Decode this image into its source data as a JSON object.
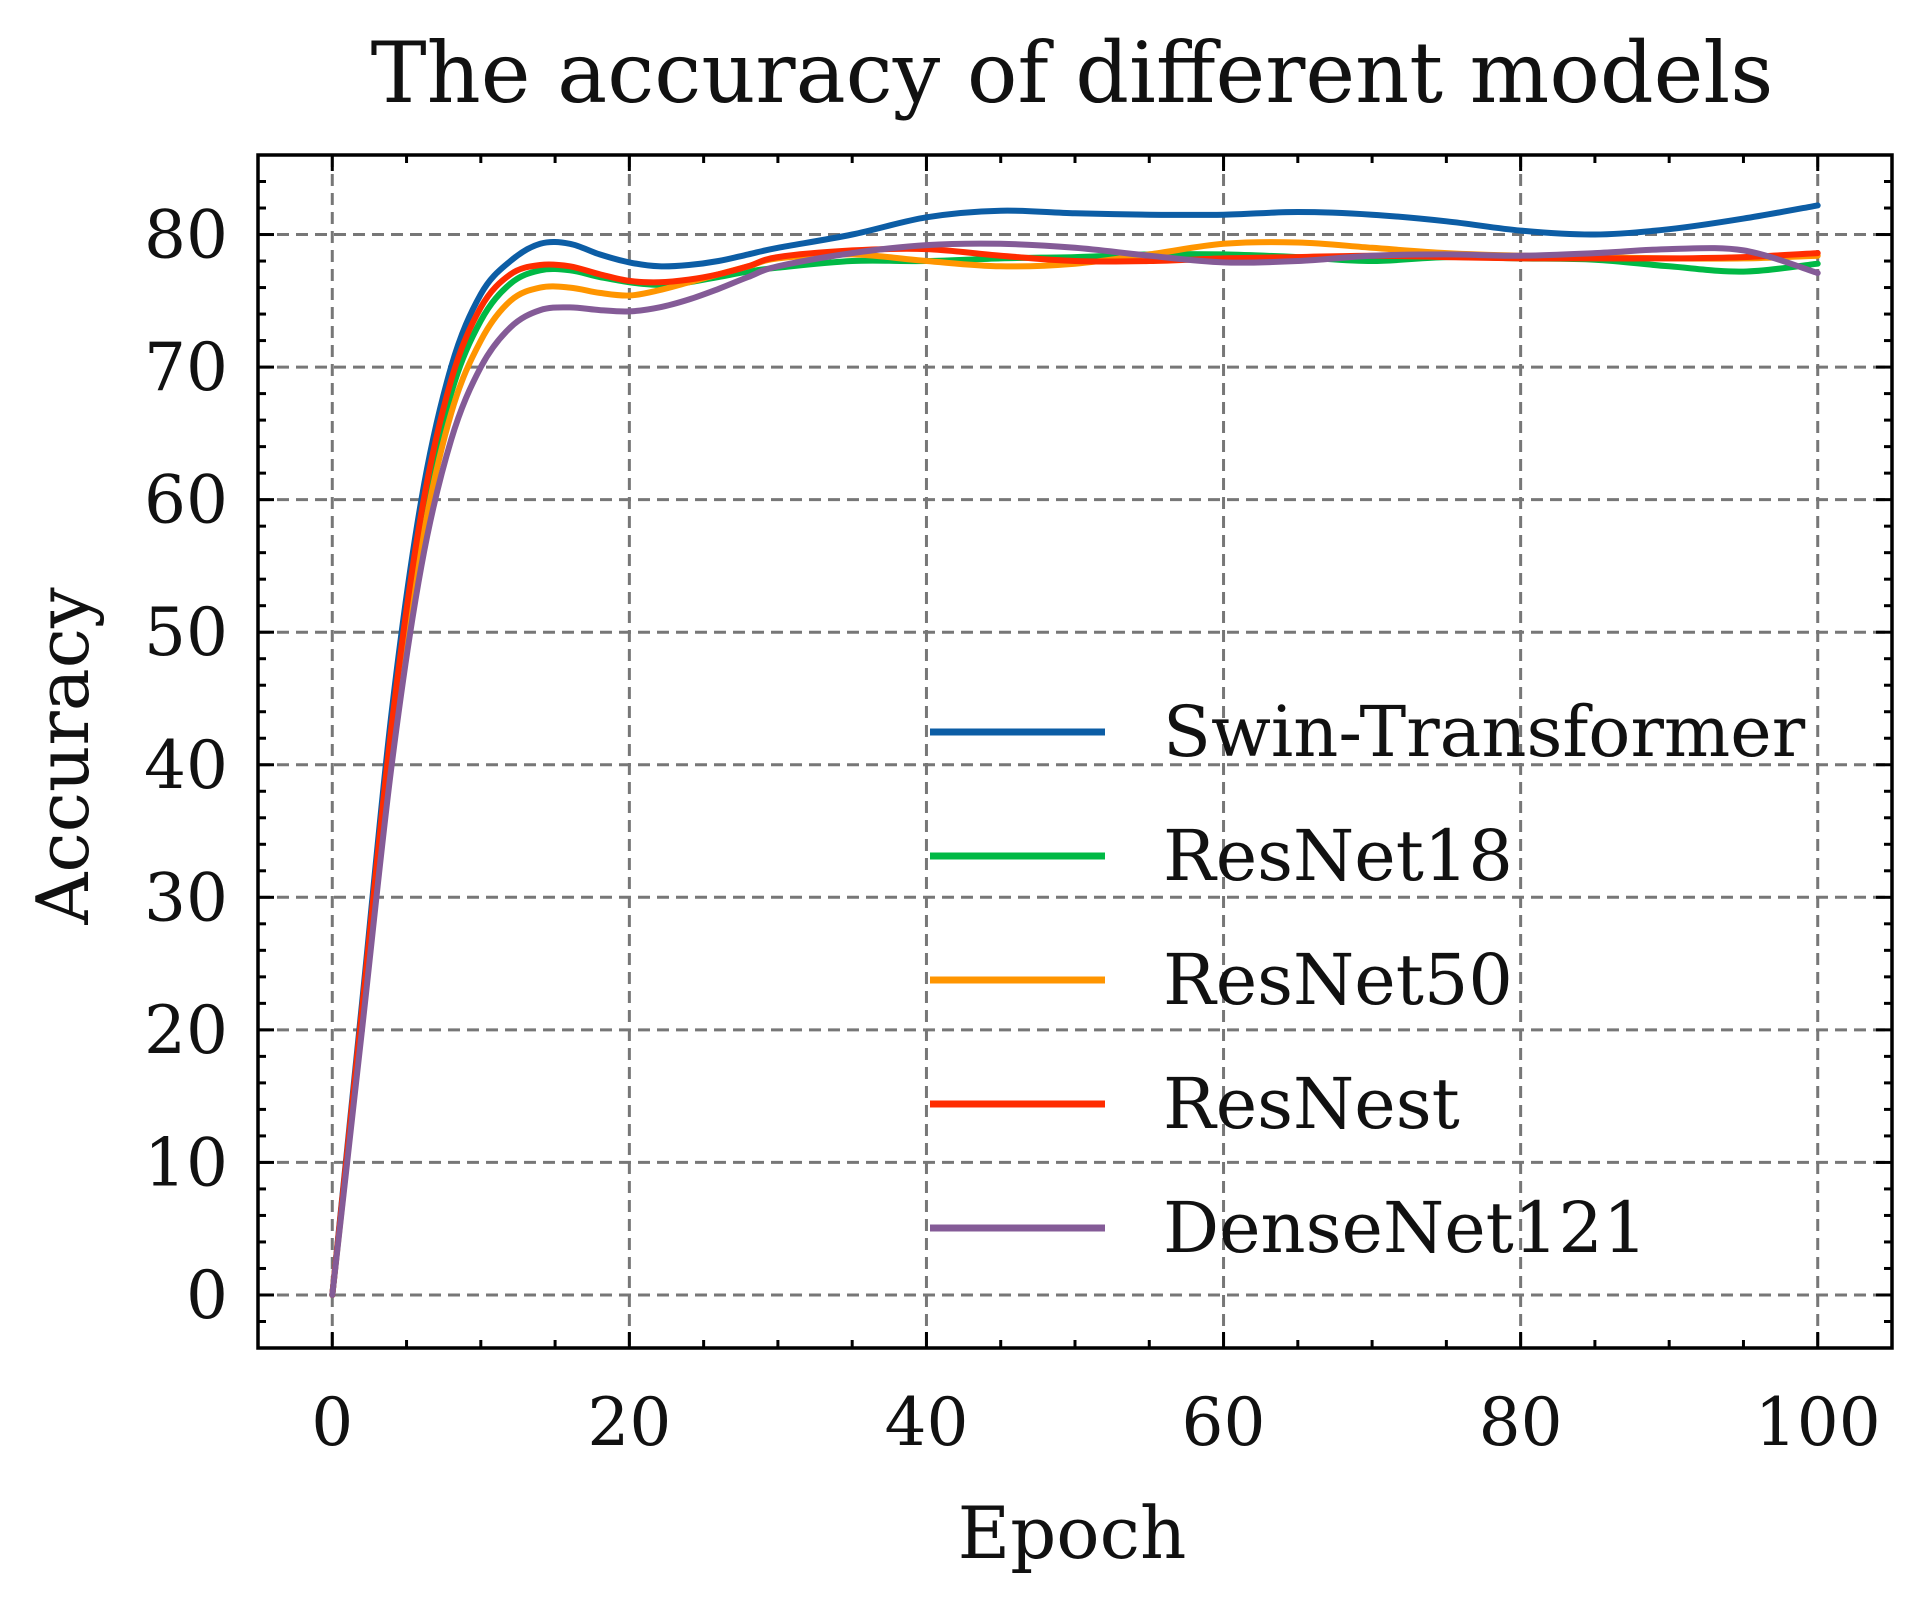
{
  "chart_data": {
    "type": "line",
    "title": "The accuracy of different models",
    "xlabel": "Epoch",
    "ylabel": "Accuracy",
    "xlim": [
      -5,
      105
    ],
    "ylim": [
      -4,
      86
    ],
    "xticks": [
      0,
      20,
      40,
      60,
      80,
      100
    ],
    "yticks": [
      0,
      10,
      20,
      30,
      40,
      50,
      60,
      70,
      80
    ],
    "grid": true,
    "legend": "lower-right",
    "series": [
      {
        "name": "Swin-Transformer",
        "color": "#0C5DA5",
        "x": [
          0,
          2,
          4,
          6,
          8,
          10,
          12,
          14,
          16,
          18,
          20,
          22,
          24,
          26,
          28,
          30,
          35,
          40,
          45,
          50,
          55,
          60,
          65,
          70,
          75,
          80,
          85,
          90,
          95,
          100
        ],
        "y": [
          0,
          22,
          44,
          60,
          70,
          75.5,
          78,
          79.3,
          79.3,
          78.5,
          77.9,
          77.6,
          77.7,
          78,
          78.5,
          79,
          80,
          81.3,
          81.8,
          81.6,
          81.5,
          81.5,
          81.7,
          81.5,
          81,
          80.3,
          80,
          80.4,
          81.2,
          82.2
        ]
      },
      {
        "name": "ResNet18",
        "color": "#00B945",
        "x": [
          0,
          2,
          4,
          6,
          8,
          10,
          12,
          14,
          16,
          18,
          20,
          22,
          24,
          26,
          28,
          30,
          35,
          40,
          45,
          50,
          55,
          60,
          65,
          70,
          75,
          80,
          85,
          90,
          95,
          100
        ],
        "y": [
          0,
          21,
          42,
          58,
          68,
          73.5,
          76.3,
          77.3,
          77.3,
          76.8,
          76.4,
          76.2,
          76.4,
          76.8,
          77.2,
          77.5,
          78,
          78,
          78.2,
          78.3,
          78.5,
          78.5,
          78.3,
          78,
          78.3,
          78.2,
          78.1,
          77.6,
          77.2,
          77.8
        ]
      },
      {
        "name": "ResNet50",
        "color": "#FF9500",
        "x": [
          0,
          2,
          4,
          6,
          8,
          10,
          12,
          14,
          16,
          18,
          20,
          22,
          24,
          26,
          28,
          30,
          35,
          40,
          45,
          50,
          55,
          60,
          65,
          70,
          75,
          80,
          85,
          90,
          95,
          100
        ],
        "y": [
          0,
          20.5,
          41,
          56.5,
          66.5,
          72,
          75,
          76,
          76,
          75.6,
          75.4,
          75.8,
          76.4,
          77,
          77.6,
          78.2,
          78.5,
          78,
          77.6,
          77.8,
          78.5,
          79.3,
          79.4,
          79,
          78.6,
          78.4,
          78.3,
          78.2,
          78.2,
          78.4
        ]
      },
      {
        "name": "ResNest",
        "color": "#FF2C00",
        "x": [
          0,
          2,
          4,
          6,
          8,
          10,
          12,
          14,
          16,
          18,
          20,
          22,
          24,
          26,
          28,
          30,
          35,
          40,
          45,
          50,
          55,
          60,
          65,
          70,
          75,
          80,
          85,
          90,
          95,
          100
        ],
        "y": [
          0,
          21.5,
          43,
          59,
          69,
          74.5,
          77,
          77.7,
          77.6,
          77,
          76.5,
          76.4,
          76.6,
          77,
          77.6,
          78.3,
          78.8,
          78.9,
          78.4,
          78,
          78,
          78.2,
          78.3,
          78.4,
          78.3,
          78.2,
          78.2,
          78.2,
          78.3,
          78.6
        ]
      },
      {
        "name": "DenseNet121",
        "color": "#845B97",
        "x": [
          0,
          2,
          4,
          6,
          8,
          10,
          12,
          14,
          16,
          18,
          20,
          22,
          24,
          26,
          28,
          30,
          35,
          40,
          45,
          50,
          55,
          60,
          65,
          70,
          75,
          80,
          85,
          90,
          95,
          100
        ],
        "y": [
          0,
          20,
          40,
          55,
          64.5,
          70,
          73,
          74.3,
          74.5,
          74.3,
          74.2,
          74.5,
          75.1,
          75.9,
          76.8,
          77.6,
          78.6,
          79.2,
          79.3,
          79,
          78.4,
          77.9,
          78,
          78.4,
          78.5,
          78.4,
          78.6,
          78.9,
          78.8,
          77.1
        ]
      }
    ]
  }
}
